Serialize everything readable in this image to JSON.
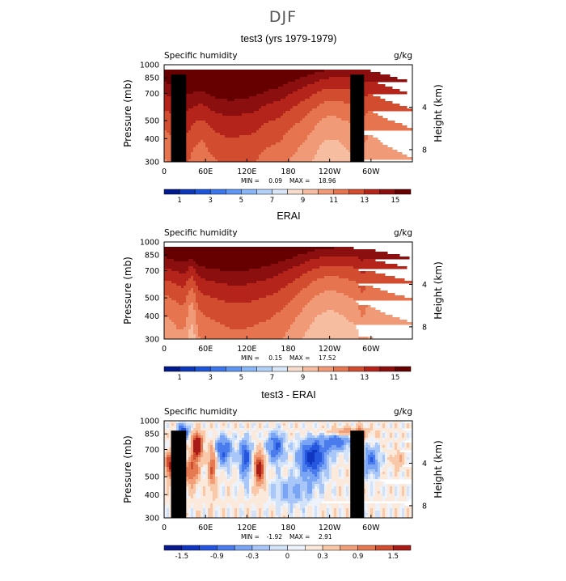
{
  "title": "DJF",
  "chart_data": [
    {
      "type": "heatmap",
      "panel_title": "test3 (yrs 1979-1979)",
      "left_label": "Specific humidity",
      "units": "g/kg",
      "ylabel": "Pressure (mb)",
      "y2label": "Height (km)",
      "x_ticks": [
        "0",
        "60E",
        "120E",
        "180",
        "120W",
        "60W"
      ],
      "x_tick_values": [
        0,
        60,
        120,
        180,
        240,
        300
      ],
      "xlim": [
        0,
        360
      ],
      "y_ticks": [
        "300",
        "400",
        "500",
        "700",
        "850",
        "1000"
      ],
      "y_tick_values": [
        300,
        400,
        500,
        700,
        850,
        1000
      ],
      "ylim": [
        1000,
        300
      ],
      "y2_ticks": [
        "8",
        "4"
      ],
      "y2_tick_values": [
        8,
        4
      ],
      "stats": {
        "min_label": "MIN =",
        "min": "0.09",
        "max_label": "MAX =",
        "max": "18.96"
      },
      "colorbar": {
        "labels": [
          "1",
          "3",
          "5",
          "7",
          "9",
          "11",
          "13",
          "15"
        ],
        "colors": [
          "#00198c",
          "#0d36b8",
          "#1e55d8",
          "#3b76ea",
          "#5e96f2",
          "#88b6f6",
          "#b3d0f8",
          "#d9e6f7",
          "#f6dccd",
          "#f7bda0",
          "#f19a77",
          "#e5744f",
          "#d24c30",
          "#b5241a",
          "#8c0f10",
          "#660000"
        ]
      },
      "field": "hum_model"
    },
    {
      "type": "heatmap",
      "panel_title": "ERAI",
      "left_label": "Specific humidity",
      "units": "g/kg",
      "ylabel": "Pressure (mb)",
      "y2label": "Height (km)",
      "x_ticks": [
        "0",
        "60E",
        "120E",
        "180",
        "120W",
        "60W"
      ],
      "x_tick_values": [
        0,
        60,
        120,
        180,
        240,
        300
      ],
      "xlim": [
        0,
        360
      ],
      "y_ticks": [
        "300",
        "400",
        "500",
        "700",
        "850",
        "1000"
      ],
      "y_tick_values": [
        300,
        400,
        500,
        700,
        850,
        1000
      ],
      "ylim": [
        1000,
        300
      ],
      "y2_ticks": [
        "8",
        "4"
      ],
      "y2_tick_values": [
        8,
        4
      ],
      "stats": {
        "min_label": "MIN =",
        "min": "0.15",
        "max_label": "MAX =",
        "max": "17.52"
      },
      "colorbar": {
        "labels": [
          "1",
          "3",
          "5",
          "7",
          "9",
          "11",
          "13",
          "15"
        ],
        "colors": [
          "#00198c",
          "#0d36b8",
          "#1e55d8",
          "#3b76ea",
          "#5e96f2",
          "#88b6f6",
          "#b3d0f8",
          "#d9e6f7",
          "#f6dccd",
          "#f7bda0",
          "#f19a77",
          "#e5744f",
          "#d24c30",
          "#b5241a",
          "#8c0f10",
          "#660000"
        ]
      },
      "field": "hum_obs"
    },
    {
      "type": "heatmap",
      "panel_title": "test3 - ERAI",
      "left_label": "Specific humidity",
      "units": "g/kg",
      "ylabel": "Pressure (mb)",
      "y2label": "Height (km)",
      "x_ticks": [
        "0",
        "60E",
        "120E",
        "180",
        "120W",
        "60W"
      ],
      "x_tick_values": [
        0,
        60,
        120,
        180,
        240,
        300
      ],
      "xlim": [
        0,
        360
      ],
      "y_ticks": [
        "300",
        "400",
        "500",
        "700",
        "850",
        "1000"
      ],
      "y_tick_values": [
        300,
        400,
        500,
        700,
        850,
        1000
      ],
      "ylim": [
        1000,
        300
      ],
      "y2_ticks": [
        "8",
        "4"
      ],
      "y2_tick_values": [
        8,
        4
      ],
      "stats": {
        "min_label": "MIN =",
        "min": "-1.92",
        "max_label": "MAX =",
        "max": "2.91"
      },
      "colorbar": {
        "labels": [
          "-1.5",
          "-0.9",
          "-0.3",
          "0",
          "0.3",
          "0.9",
          "1.5"
        ],
        "colors": [
          "#0a1a8c",
          "#1036c0",
          "#2457dd",
          "#4a7cee",
          "#7aa5f4",
          "#a8c6f8",
          "#d2e2f9",
          "#eef3fb",
          "#fbe9dc",
          "#f8c8a8",
          "#f2a07a",
          "#e57a52",
          "#d04e30",
          "#a81c18"
        ]
      },
      "field": "diff"
    }
  ]
}
